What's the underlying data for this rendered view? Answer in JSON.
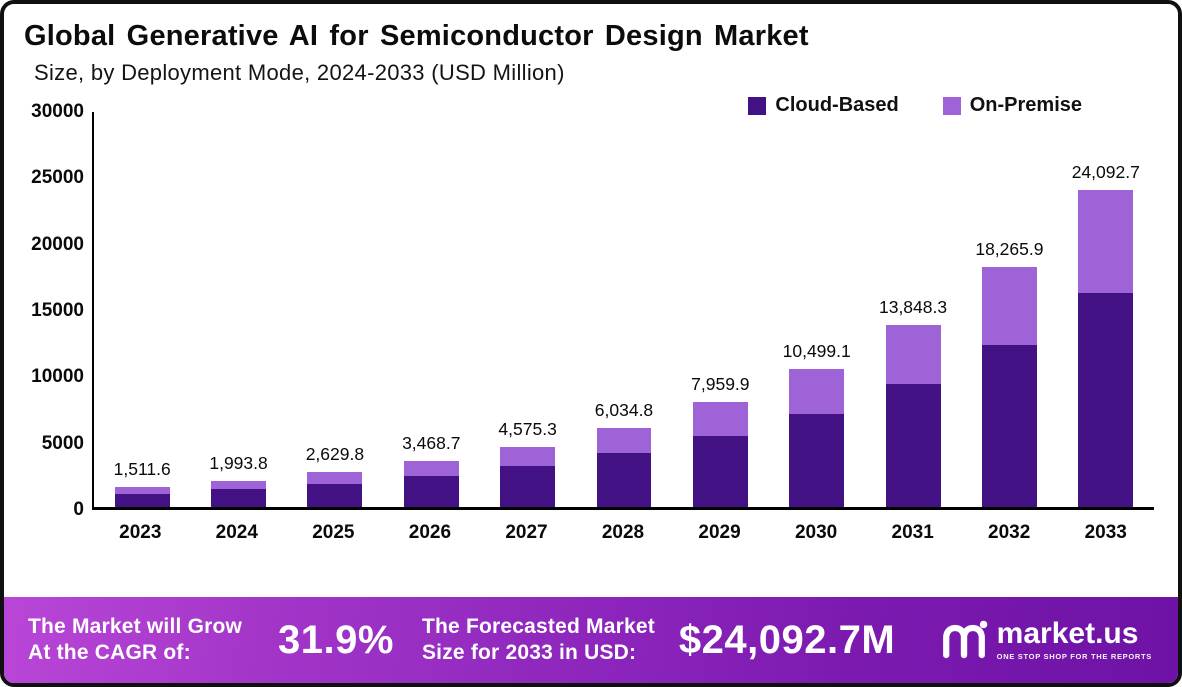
{
  "header": {
    "title": "Global Generative AI for Semiconductor Design Market",
    "subtitle": "Size, by Deployment Mode, 2024-2033 (USD Million)"
  },
  "legend": [
    {
      "label": "Cloud-Based",
      "color": "#421285"
    },
    {
      "label": "On-Premise",
      "color": "#9e63d6"
    }
  ],
  "chart_data": {
    "type": "bar",
    "stacked": true,
    "title": "Global Generative AI for Semiconductor Design Market Size, by Deployment Mode, 2024-2033 (USD Million)",
    "categories": [
      "2023",
      "2024",
      "2025",
      "2026",
      "2027",
      "2028",
      "2029",
      "2030",
      "2031",
      "2032",
      "2033"
    ],
    "series": [
      {
        "name": "Cloud-Based",
        "color": "#421285",
        "values": [
          1020.3,
          1345.8,
          1775.1,
          2341.4,
          3088.3,
          4073.5,
          5372.9,
          7086.9,
          9347.6,
          12329.5,
          16262.6
        ]
      },
      {
        "name": "On-Premise",
        "color": "#9e63d6",
        "values": [
          491.3,
          648.0,
          854.7,
          1127.3,
          1487.0,
          1961.3,
          2587.0,
          3412.2,
          4500.7,
          5936.4,
          7830.1
        ]
      }
    ],
    "totals": [
      1511.6,
      1993.8,
      2629.8,
      3468.7,
      4575.3,
      6034.8,
      7959.9,
      10499.1,
      13848.3,
      18265.9,
      24092.7
    ],
    "total_labels": [
      "1,511.6",
      "1,993.8",
      "2,629.8",
      "3,468.7",
      "4,575.3",
      "6,034.8",
      "7,959.9",
      "10,499.1",
      "13,848.3",
      "18,265.9",
      "24,092.7"
    ],
    "ylim": [
      0,
      30000
    ],
    "yticks": [
      0,
      5000,
      10000,
      15000,
      20000,
      25000,
      30000
    ],
    "grid": false,
    "legend_position": "top-right"
  },
  "footer": {
    "cagr_line1": "The Market will Grow",
    "cagr_line2": "At the CAGR of:",
    "cagr_value": "31.9%",
    "forecast_line1": "The Forecasted Market",
    "forecast_line2": "Size for 2033 in USD:",
    "forecast_value": "$24,092.7M",
    "brand": "market.us",
    "brand_tagline": "ONE STOP SHOP FOR THE REPORTS"
  }
}
